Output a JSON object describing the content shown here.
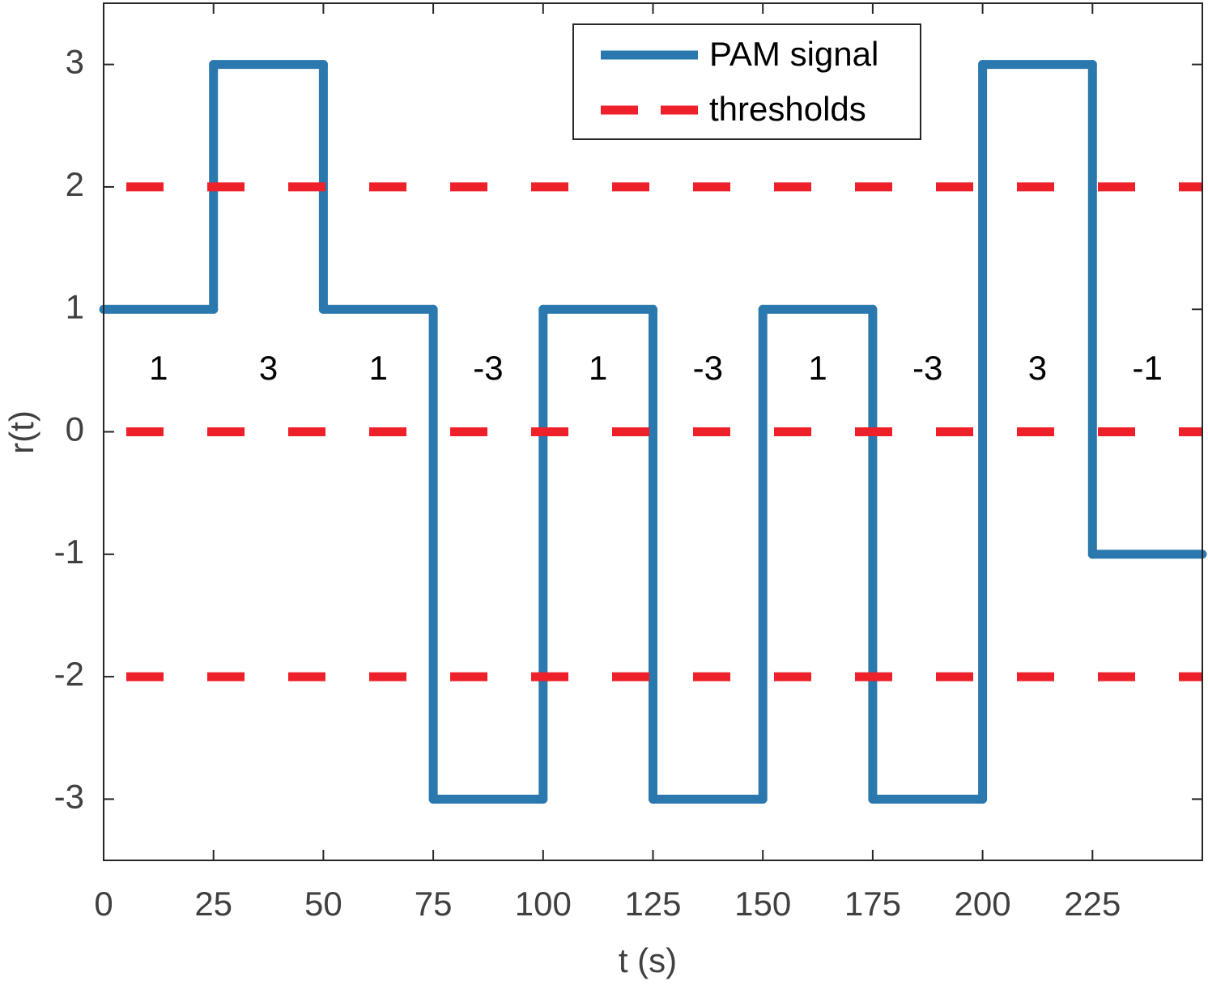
{
  "chart_data": {
    "type": "line",
    "xlabel": "t (s)",
    "ylabel": "r(t)",
    "xlim": [
      0,
      250
    ],
    "ylim": [
      -3.5,
      3.5
    ],
    "xticks": [
      0,
      25,
      50,
      75,
      100,
      125,
      150,
      175,
      200,
      225
    ],
    "yticks": [
      -3,
      -2,
      -1,
      0,
      1,
      2,
      3
    ],
    "legend": "top-right",
    "series": [
      {
        "name": "PAM signal",
        "color": "#2a78ae",
        "step": "post",
        "x": [
          0,
          25,
          50,
          75,
          100,
          125,
          150,
          175,
          200,
          225
        ],
        "values": [
          1,
          3,
          1,
          -3,
          1,
          -3,
          1,
          -3,
          3,
          -1
        ]
      },
      {
        "name": "thresholds",
        "color": "#ee2029",
        "style": "hline",
        "dashed": true,
        "values": [
          -2,
          0,
          2
        ]
      }
    ]
  }
}
